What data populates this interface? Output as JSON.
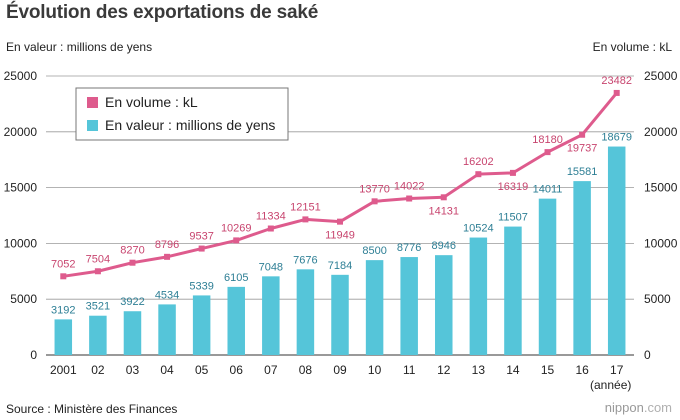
{
  "title": "Évolution des exportations de saké",
  "left_axis_unit": "En valeur : millions de yens",
  "right_axis_unit": "En volume : kL",
  "source": "Source : Ministère des Finances",
  "brand": {
    "name": "nippon",
    "domain": ".com"
  },
  "colors": {
    "bar": "#55c5d9",
    "line": "#de5b8d",
    "bar_label": "#2e7f95",
    "line_label": "#c8456f",
    "axis_text": "#222222"
  },
  "chart_data": {
    "type": "bar+line",
    "title": "Évolution des exportations de saké",
    "categories": [
      "2001",
      "02",
      "03",
      "04",
      "05",
      "06",
      "07",
      "08",
      "09",
      "10",
      "11",
      "12",
      "13",
      "14",
      "15",
      "16",
      "17"
    ],
    "x_unit_label": "(année)",
    "y_ticks": [
      "0",
      "5000",
      "10000",
      "15000",
      "20000",
      "25000"
    ],
    "ylim": [
      0,
      25000
    ],
    "legend_position": "top-left",
    "series": [
      {
        "name": "En valeur : millions de yens",
        "type": "bar",
        "values": [
          3192,
          3521,
          3922,
          4534,
          5339,
          6105,
          7048,
          7676,
          7184,
          8500,
          8776,
          8946,
          10524,
          11507,
          14011,
          15581,
          18679
        ]
      },
      {
        "name": "En volume : kL",
        "type": "line",
        "values": [
          7052,
          7504,
          8270,
          8796,
          9537,
          10269,
          11334,
          12151,
          11949,
          13770,
          14022,
          14131,
          16202,
          16319,
          18180,
          19737,
          23482
        ]
      }
    ]
  }
}
